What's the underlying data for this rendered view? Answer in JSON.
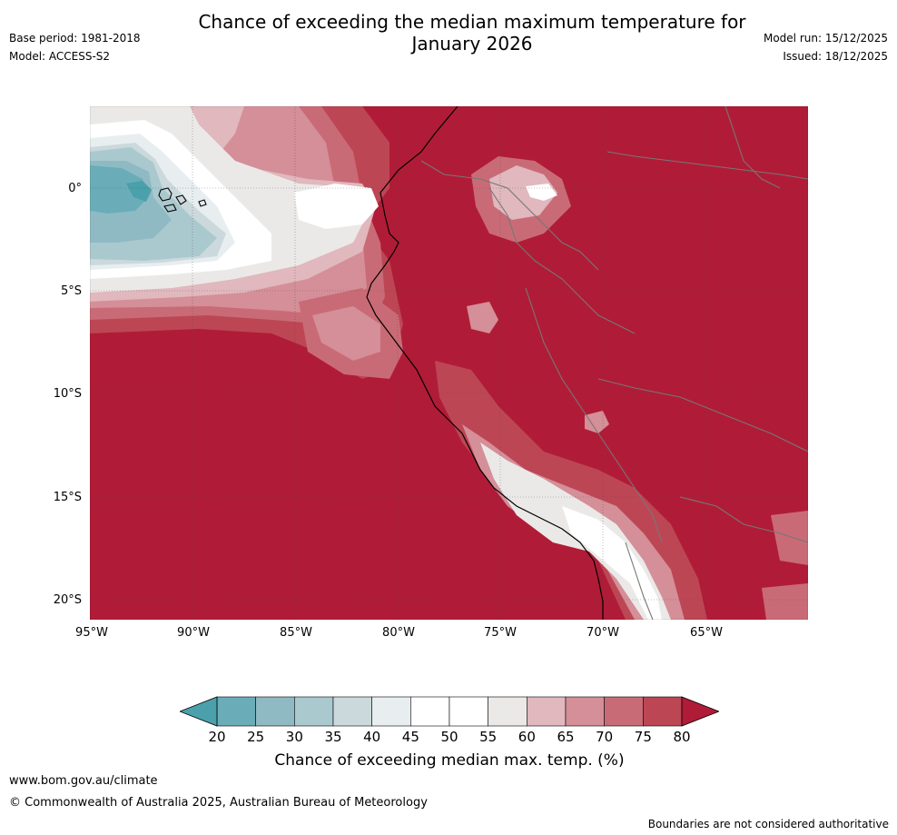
{
  "title_line1": "Chance of exceeding the median maximum temperature for",
  "title_line2": "January 2026",
  "base_period": "Base period: 1981-2018",
  "model": "Model: ACCESS-S2",
  "model_run": "Model run: 15/12/2025",
  "issued": "Issued: 18/12/2025",
  "lat_labels": [
    "0°",
    "5°S",
    "10°S",
    "15°S",
    "20°S"
  ],
  "lon_labels": [
    "95°W",
    "90°W",
    "85°W",
    "80°W",
    "75°W",
    "70°W",
    "65°W"
  ],
  "colorbar": {
    "ticks": [
      "20",
      "25",
      "30",
      "35",
      "40",
      "45",
      "50",
      "55",
      "60",
      "65",
      "70",
      "75",
      "80"
    ],
    "colors": [
      "#4aa0ab",
      "#6aadb8",
      "#8fbac4",
      "#aac9ce",
      "#cbd9dc",
      "#e8eef0",
      "#ffffff",
      "#ffffff",
      "#ebe9e7",
      "#e0b8bd",
      "#d48f98",
      "#c96b76",
      "#bd4655",
      "#b01c37"
    ],
    "label": "Chance of exceeding median max. temp. (%)"
  },
  "footer": {
    "website": "www.bom.gov.au/climate",
    "copyright": "© Commonwealth of Australia 2025, Australian Bureau of Meteorology",
    "disclaimer": "Boundaries are not considered authoritative"
  }
}
